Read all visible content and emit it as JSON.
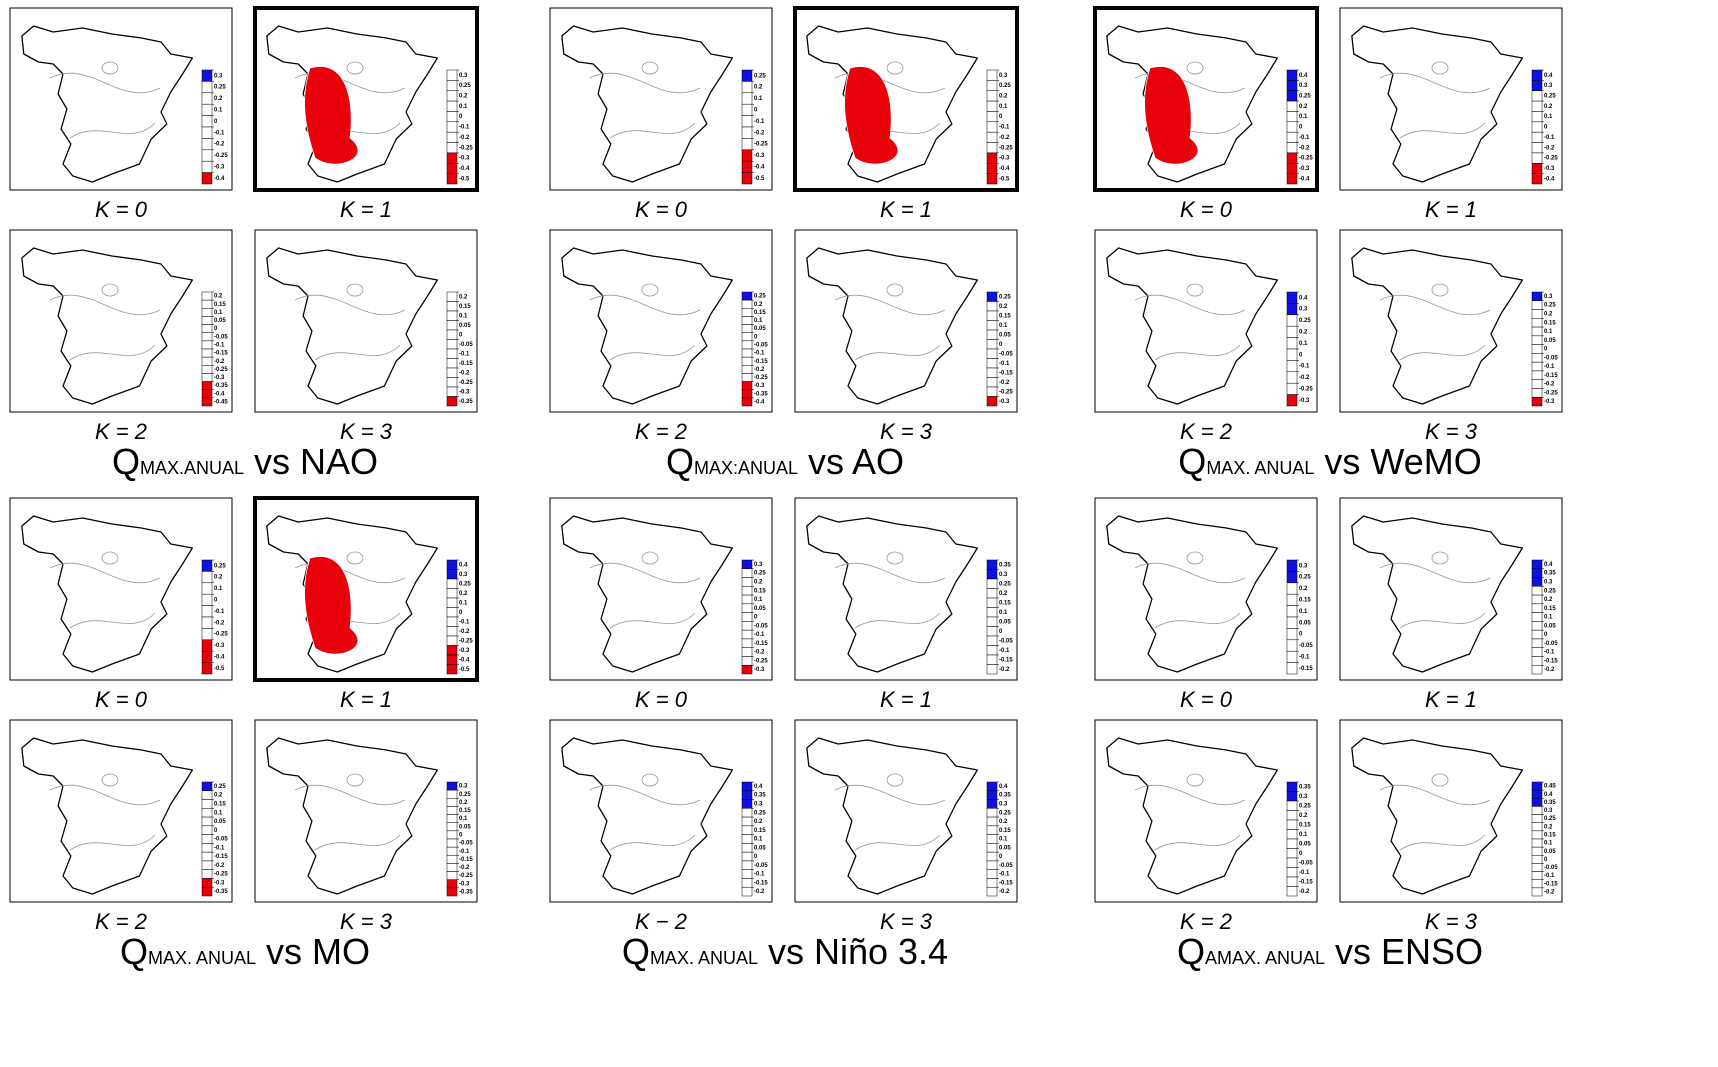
{
  "groups": [
    {
      "title": {
        "q": "Q",
        "sub": "MAX.ANUAL",
        "rest": "vs NAO"
      },
      "panels": [
        {
          "label": "K = 0",
          "highlight": false,
          "blue": 1,
          "red": 1,
          "colorbar": [
            0.3,
            0.25,
            0.2,
            0.1,
            0,
            -0.1,
            -0.2,
            -0.25,
            -0.3,
            -0.4
          ]
        },
        {
          "label": "K = 1",
          "highlight": true,
          "blue": 0,
          "red": 3,
          "colorbar": [
            0.3,
            0.25,
            0.2,
            0.1,
            0,
            -0.1,
            -0.2,
            -0.25,
            -0.3,
            -0.4,
            -0.5
          ]
        },
        {
          "label": "K = 2",
          "highlight": false,
          "blue": 0,
          "red": 3,
          "colorbar": [
            0.2,
            0.15,
            0.1,
            0.05,
            0,
            -0.05,
            -0.1,
            -0.15,
            -0.2,
            -0.25,
            -0.3,
            -0.35,
            -0.4,
            -0.45
          ]
        },
        {
          "label": "K = 3",
          "highlight": false,
          "blue": 0,
          "red": 1,
          "colorbar": [
            0.2,
            0.15,
            0.1,
            0.05,
            0,
            -0.05,
            -0.1,
            -0.15,
            -0.2,
            -0.25,
            -0.3,
            -0.35
          ]
        }
      ]
    },
    {
      "title": {
        "q": "Q",
        "sub": "MAX:ANUAL",
        "rest": "vs AO"
      },
      "panels": [
        {
          "label": "K = 0",
          "highlight": false,
          "blue": 1,
          "red": 3,
          "colorbar": [
            0.25,
            0.2,
            0.1,
            0,
            -0.1,
            -0.2,
            -0.25,
            -0.3,
            -0.4,
            -0.5
          ]
        },
        {
          "label": "K = 1",
          "highlight": true,
          "blue": 0,
          "red": 3,
          "colorbar": [
            0.3,
            0.25,
            0.2,
            0.1,
            0,
            -0.1,
            -0.2,
            -0.25,
            -0.3,
            -0.4,
            -0.5
          ]
        },
        {
          "label": "K = 2",
          "highlight": false,
          "blue": 1,
          "red": 3,
          "colorbar": [
            0.25,
            0.2,
            0.15,
            0.1,
            0.05,
            0,
            -0.05,
            -0.1,
            -0.15,
            -0.2,
            -0.25,
            -0.3,
            -0.35,
            -0.4
          ]
        },
        {
          "label": "K = 3",
          "highlight": false,
          "blue": 1,
          "red": 1,
          "colorbar": [
            0.25,
            0.2,
            0.15,
            0.1,
            0.05,
            0,
            -0.05,
            -0.1,
            -0.15,
            -0.2,
            -0.25,
            -0.3
          ]
        }
      ]
    },
    {
      "title": {
        "q": "Q",
        "sub": "MAX. ANUAL",
        "rest": "vs WeMO"
      },
      "panels": [
        {
          "label": "K = 0",
          "highlight": true,
          "blue": 3,
          "red": 3,
          "colorbar": [
            0.4,
            0.3,
            0.25,
            0.2,
            0.1,
            0,
            -0.1,
            -0.2,
            -0.25,
            -0.3,
            -0.4
          ]
        },
        {
          "label": "K = 1",
          "highlight": false,
          "blue": 2,
          "red": 2,
          "colorbar": [
            0.4,
            0.3,
            0.25,
            0.2,
            0.1,
            0,
            -0.1,
            -0.2,
            -0.25,
            -0.3,
            -0.4
          ]
        },
        {
          "label": "K = 2",
          "highlight": false,
          "blue": 2,
          "red": 1,
          "colorbar": [
            0.4,
            0.3,
            0.25,
            0.2,
            0.1,
            0,
            -0.1,
            -0.2,
            -0.25,
            -0.3
          ]
        },
        {
          "label": "K = 3",
          "highlight": false,
          "blue": 1,
          "red": 1,
          "colorbar": [
            0.3,
            0.25,
            0.2,
            0.15,
            0.1,
            0.05,
            0,
            -0.05,
            -0.1,
            -0.15,
            -0.2,
            -0.25,
            -0.3
          ]
        }
      ]
    },
    {
      "title": {
        "q": "Q",
        "sub": "MAX. ANUAL",
        "rest": "vs MO"
      },
      "panels": [
        {
          "label": "K = 0",
          "highlight": false,
          "blue": 1,
          "red": 3,
          "colorbar": [
            0.25,
            0.2,
            0.1,
            0,
            -0.1,
            -0.2,
            -0.25,
            -0.3,
            -0.4,
            -0.5
          ]
        },
        {
          "label": "K = 1",
          "highlight": true,
          "blue": 2,
          "red": 3,
          "colorbar": [
            0.4,
            0.3,
            0.25,
            0.2,
            0.1,
            0,
            -0.1,
            -0.2,
            -0.25,
            -0.3,
            -0.4,
            -0.5
          ]
        },
        {
          "label": "K = 2",
          "highlight": false,
          "blue": 1,
          "red": 2,
          "colorbar": [
            0.25,
            0.2,
            0.15,
            0.1,
            0.05,
            0,
            -0.05,
            -0.1,
            -0.15,
            -0.2,
            -0.25,
            -0.3,
            -0.35
          ]
        },
        {
          "label": "K = 3",
          "highlight": false,
          "blue": 1,
          "red": 2,
          "colorbar": [
            0.3,
            0.25,
            0.2,
            0.15,
            0.1,
            0.05,
            0,
            -0.05,
            -0.1,
            -0.15,
            -0.2,
            -0.25,
            -0.3,
            -0.35
          ]
        }
      ]
    },
    {
      "title": {
        "q": "Q",
        "sub": "MAX. ANUAL",
        "rest": "vs Niño 3.4"
      },
      "panels": [
        {
          "label": "K = 0",
          "highlight": false,
          "blue": 1,
          "red": 1,
          "colorbar": [
            0.3,
            0.25,
            0.2,
            0.15,
            0.1,
            0.05,
            0,
            -0.05,
            -0.1,
            -0.15,
            -0.2,
            -0.25,
            -0.3
          ]
        },
        {
          "label": "K = 1",
          "highlight": false,
          "blue": 2,
          "red": 0,
          "colorbar": [
            0.35,
            0.3,
            0.25,
            0.2,
            0.15,
            0.1,
            0.05,
            0,
            -0.05,
            -0.1,
            -0.15,
            -0.2
          ]
        },
        {
          "label": "K − 2",
          "highlight": false,
          "blue": 3,
          "red": 0,
          "colorbar": [
            0.4,
            0.35,
            0.3,
            0.25,
            0.2,
            0.15,
            0.1,
            0.05,
            0,
            -0.05,
            -0.1,
            -0.15,
            -0.2
          ]
        },
        {
          "label": "K = 3",
          "highlight": false,
          "blue": 3,
          "red": 0,
          "colorbar": [
            0.4,
            0.35,
            0.3,
            0.25,
            0.2,
            0.15,
            0.1,
            0.05,
            0,
            -0.05,
            -0.1,
            -0.15,
            -0.2
          ]
        }
      ]
    },
    {
      "title": {
        "q": "Q",
        "sub": "AMAX. ANUAL",
        "rest": "vs ENSO"
      },
      "panels": [
        {
          "label": "K = 0",
          "highlight": false,
          "blue": 2,
          "red": 0,
          "colorbar": [
            0.3,
            0.25,
            0.2,
            0.15,
            0.1,
            0.05,
            0,
            -0.05,
            -0.1,
            -0.15
          ]
        },
        {
          "label": "K = 1",
          "highlight": false,
          "blue": 3,
          "red": 0,
          "colorbar": [
            0.4,
            0.35,
            0.3,
            0.25,
            0.2,
            0.15,
            0.1,
            0.05,
            0,
            -0.05,
            -0.1,
            -0.15,
            -0.2
          ]
        },
        {
          "label": "K = 2",
          "highlight": false,
          "blue": 2,
          "red": 0,
          "colorbar": [
            0.35,
            0.3,
            0.25,
            0.2,
            0.15,
            0.1,
            0.05,
            0,
            -0.05,
            -0.1,
            -0.15,
            -0.2
          ]
        },
        {
          "label": "K = 3",
          "highlight": false,
          "blue": 3,
          "red": 0,
          "colorbar": [
            0.45,
            0.4,
            0.35,
            0.3,
            0.25,
            0.2,
            0.15,
            0.1,
            0.05,
            0,
            -0.05,
            -0.1,
            -0.15,
            -0.2
          ]
        }
      ]
    }
  ]
}
